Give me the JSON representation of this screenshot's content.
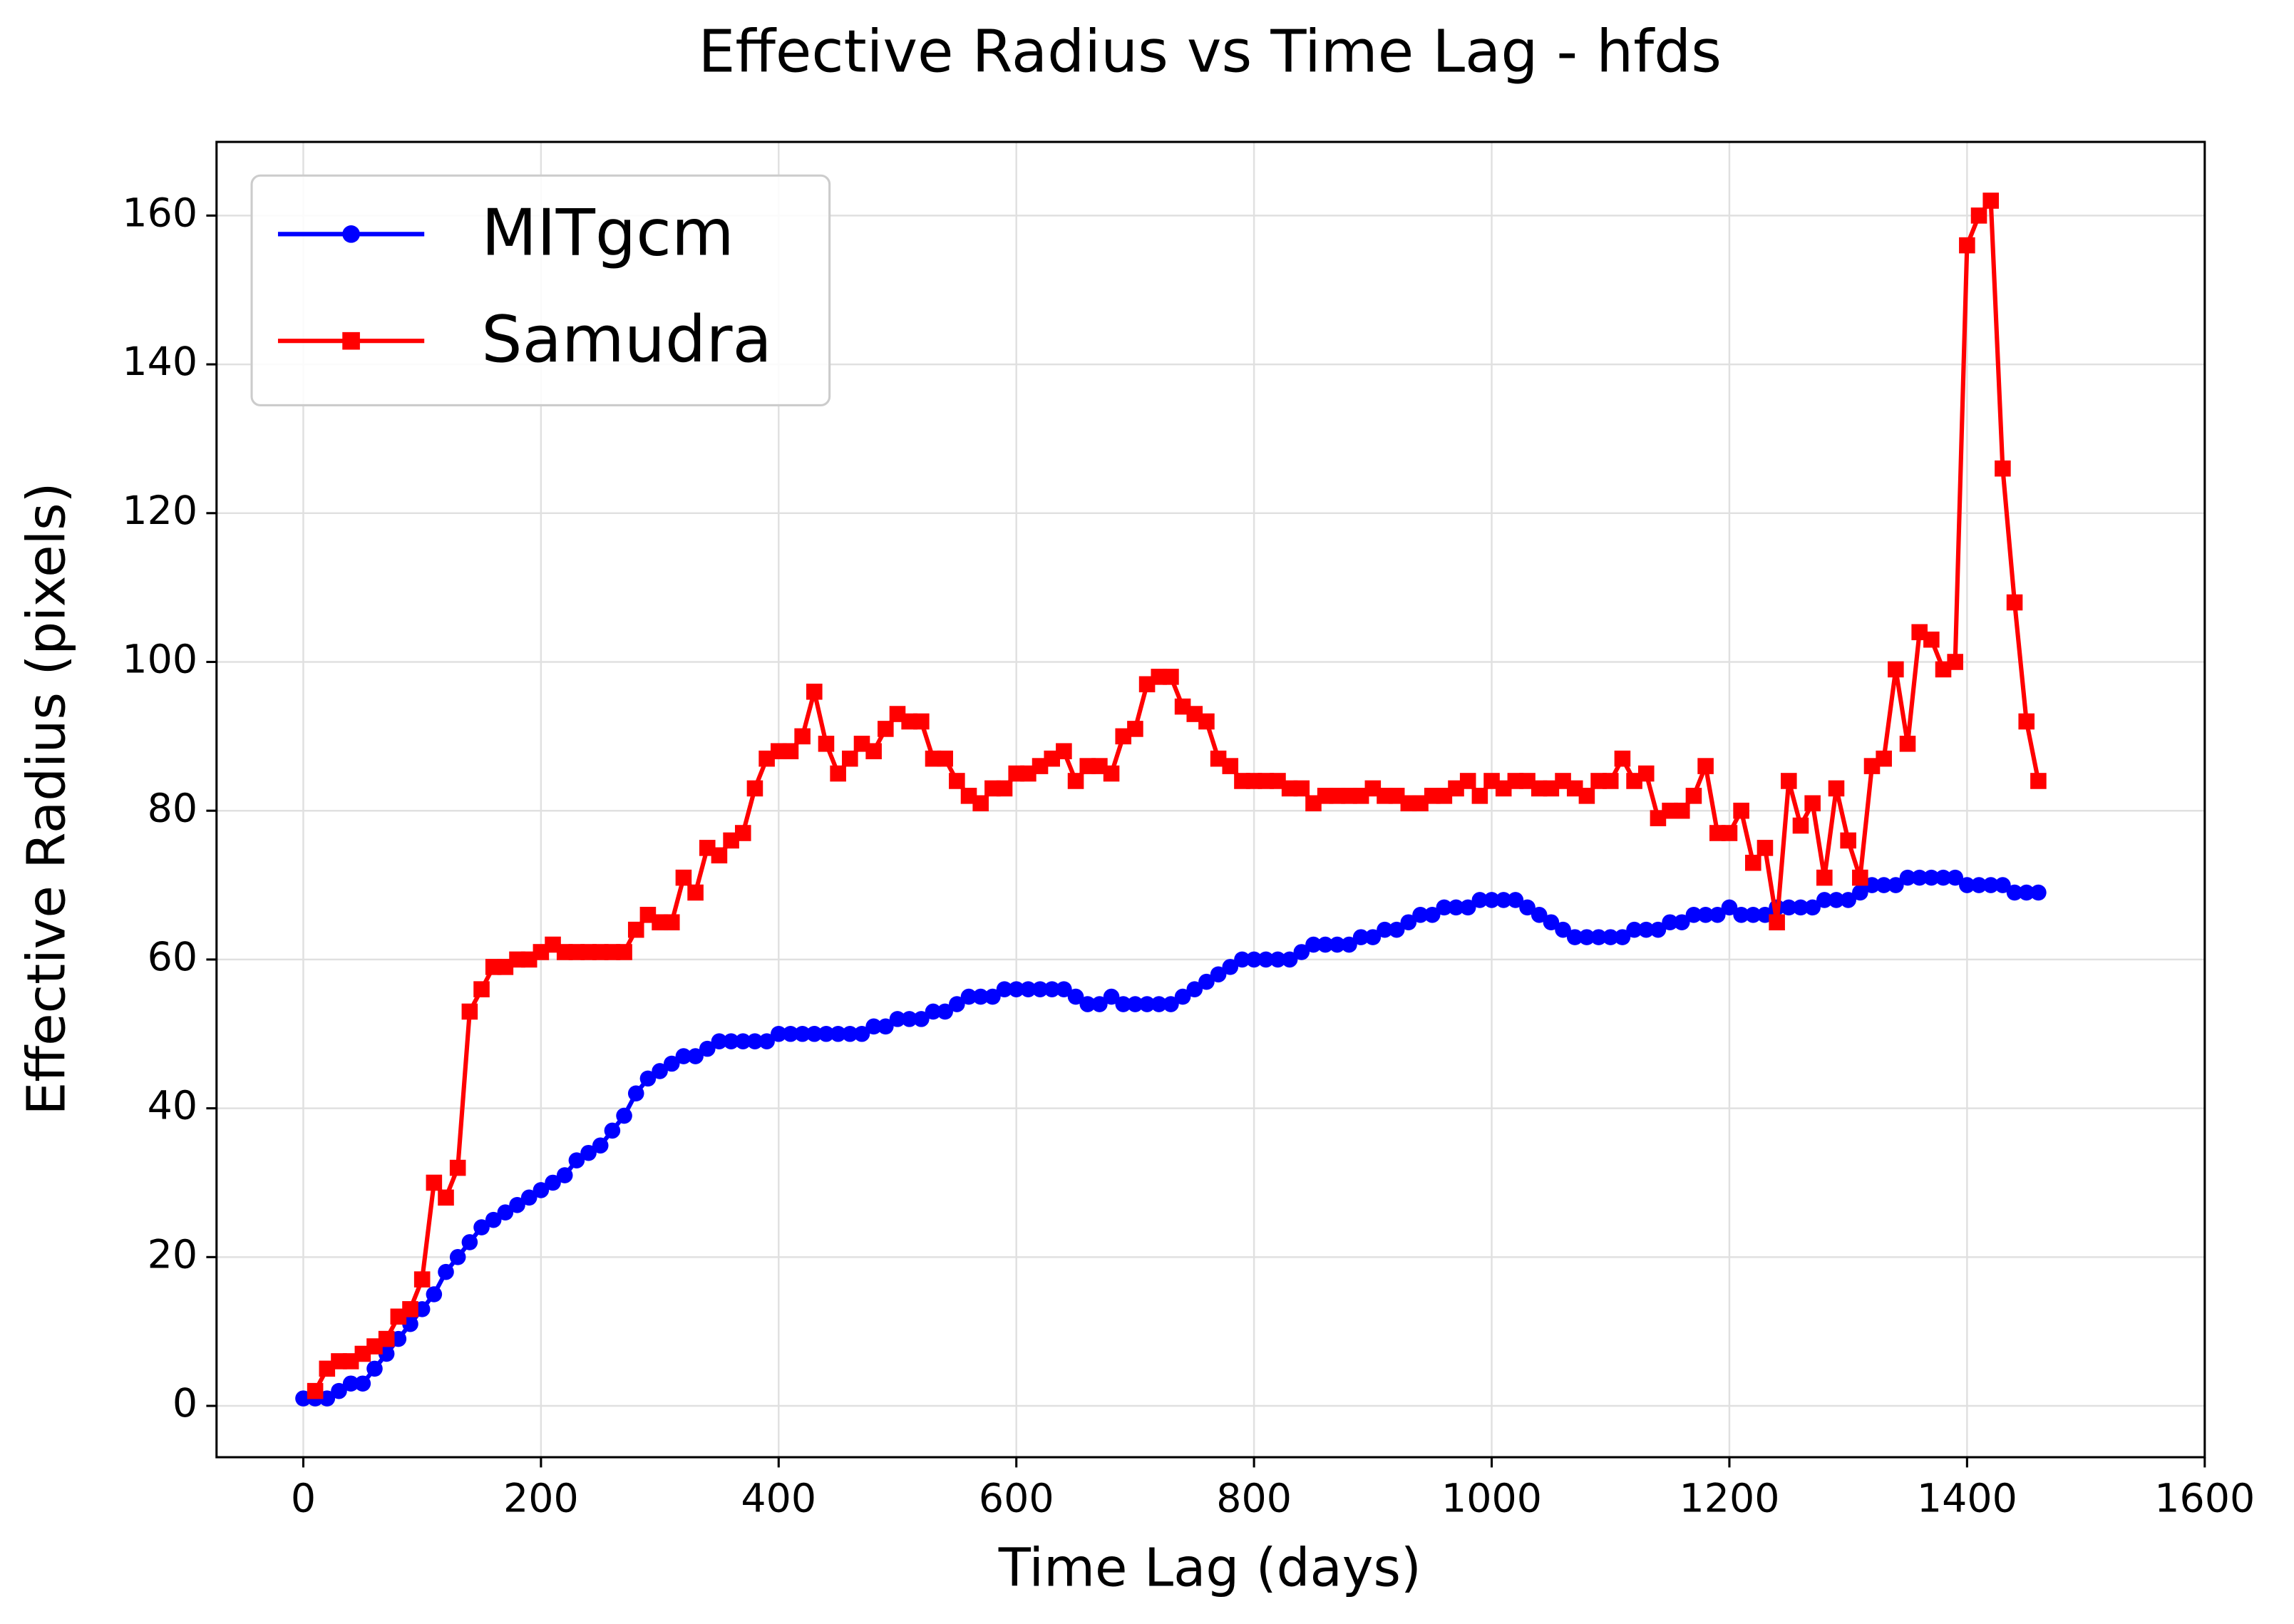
{
  "chart_data": {
    "type": "line",
    "title": "Effective Radius vs Time Lag - hfds",
    "x_label": "Time Lag (days)",
    "y_label": "Effective Radius (pixels)",
    "xlim": [
      -73,
      1600
    ],
    "ylim": [
      -6.9,
      169.9
    ],
    "xticks": [
      0,
      200,
      400,
      600,
      800,
      1000,
      1200,
      1400,
      1600
    ],
    "yticks": [
      0,
      20,
      40,
      60,
      80,
      100,
      120,
      140,
      160
    ],
    "grid": true,
    "legend": "upper left",
    "series": [
      {
        "name": "MITgcm",
        "color": "#0000ff",
        "marker": "circle",
        "x": [
          0,
          10,
          20,
          30,
          40,
          50,
          60,
          70,
          80,
          90,
          100,
          110,
          120,
          130,
          140,
          150,
          160,
          170,
          180,
          190,
          200,
          210,
          220,
          230,
          240,
          250,
          260,
          270,
          280,
          290,
          300,
          310,
          320,
          330,
          340,
          350,
          360,
          370,
          380,
          390,
          400,
          410,
          420,
          430,
          440,
          450,
          460,
          470,
          480,
          490,
          500,
          510,
          520,
          530,
          540,
          550,
          560,
          570,
          580,
          590,
          600,
          610,
          620,
          630,
          640,
          650,
          660,
          670,
          680,
          690,
          700,
          710,
          720,
          730,
          740,
          750,
          760,
          770,
          780,
          790,
          800,
          810,
          820,
          830,
          840,
          850,
          860,
          870,
          880,
          890,
          900,
          910,
          920,
          930,
          940,
          950,
          960,
          970,
          980,
          990,
          1000,
          1010,
          1020,
          1030,
          1040,
          1050,
          1060,
          1070,
          1080,
          1090,
          1100,
          1110,
          1120,
          1130,
          1140,
          1150,
          1160,
          1170,
          1180,
          1190,
          1200,
          1210,
          1220,
          1230,
          1240,
          1250,
          1260,
          1270,
          1280,
          1290,
          1300,
          1310,
          1320,
          1330,
          1340,
          1350,
          1360,
          1370,
          1380,
          1390,
          1400,
          1410,
          1420,
          1430,
          1440,
          1450,
          1460
        ],
        "values": [
          1,
          1,
          1,
          2,
          3,
          3,
          5,
          7,
          9,
          11,
          13,
          15,
          18,
          20,
          22,
          24,
          25,
          26,
          27,
          28,
          29,
          30,
          31,
          33,
          34,
          35,
          37,
          39,
          42,
          44,
          45,
          46,
          47,
          47,
          48,
          49,
          49,
          49,
          49,
          49,
          50,
          50,
          50,
          50,
          50,
          50,
          50,
          50,
          51,
          51,
          52,
          52,
          52,
          53,
          53,
          54,
          55,
          55,
          55,
          56,
          56,
          56,
          56,
          56,
          56,
          55,
          54,
          54,
          55,
          54,
          54,
          54,
          54,
          54,
          55,
          56,
          57,
          58,
          59,
          60,
          60,
          60,
          60,
          60,
          61,
          62,
          62,
          62,
          62,
          63,
          63,
          64,
          64,
          65,
          66,
          66,
          67,
          67,
          67,
          68,
          68,
          68,
          68,
          67,
          66,
          65,
          64,
          63,
          63,
          63,
          63,
          63,
          64,
          64,
          64,
          65,
          65,
          66,
          66,
          66,
          67,
          66,
          66,
          66,
          67,
          67,
          67,
          67,
          68,
          68,
          68,
          69,
          70,
          70,
          70,
          71,
          71,
          71,
          71,
          71,
          70,
          70,
          70,
          70,
          69,
          69,
          69
        ]
      },
      {
        "name": "Samudra",
        "color": "#ff0000",
        "marker": "square",
        "x": [
          10,
          20,
          30,
          40,
          50,
          60,
          70,
          80,
          90,
          100,
          110,
          120,
          130,
          140,
          150,
          160,
          170,
          180,
          190,
          200,
          210,
          220,
          230,
          240,
          250,
          260,
          270,
          280,
          290,
          300,
          310,
          320,
          330,
          340,
          350,
          360,
          370,
          380,
          390,
          400,
          410,
          420,
          430,
          440,
          450,
          460,
          470,
          480,
          490,
          500,
          510,
          520,
          530,
          540,
          550,
          560,
          570,
          580,
          590,
          600,
          610,
          620,
          630,
          640,
          650,
          660,
          670,
          680,
          690,
          700,
          710,
          720,
          730,
          740,
          750,
          760,
          770,
          780,
          790,
          800,
          810,
          820,
          830,
          840,
          850,
          860,
          870,
          880,
          890,
          900,
          910,
          920,
          930,
          940,
          950,
          960,
          970,
          980,
          990,
          1000,
          1010,
          1020,
          1030,
          1040,
          1050,
          1060,
          1070,
          1080,
          1090,
          1100,
          1110,
          1120,
          1130,
          1140,
          1150,
          1160,
          1170,
          1180,
          1190,
          1200,
          1210,
          1220,
          1230,
          1240,
          1250,
          1260,
          1270,
          1280,
          1290,
          1300,
          1310,
          1320,
          1330,
          1340,
          1350,
          1360,
          1370,
          1380,
          1390,
          1400,
          1410,
          1420,
          1430,
          1440,
          1450,
          1460
        ],
        "values": [
          2,
          5,
          6,
          6,
          7,
          8,
          9,
          12,
          13,
          17,
          30,
          28,
          32,
          53,
          56,
          59,
          59,
          60,
          60,
          61,
          62,
          61,
          61,
          61,
          61,
          61,
          61,
          64,
          66,
          65,
          65,
          71,
          69,
          75,
          74,
          76,
          77,
          83,
          87,
          88,
          88,
          90,
          96,
          89,
          85,
          87,
          89,
          88,
          91,
          93,
          92,
          92,
          87,
          87,
          84,
          82,
          81,
          83,
          83,
          85,
          85,
          86,
          87,
          88,
          84,
          86,
          86,
          85,
          90,
          91,
          97,
          98,
          98,
          94,
          93,
          92,
          87,
          86,
          84,
          84,
          84,
          84,
          83,
          83,
          81,
          82,
          82,
          82,
          82,
          83,
          82,
          82,
          81,
          81,
          82,
          82,
          83,
          84,
          82,
          84,
          83,
          84,
          84,
          83,
          83,
          84,
          83,
          82,
          84,
          84,
          87,
          84,
          85,
          79,
          80,
          80,
          82,
          86,
          77,
          77,
          80,
          73,
          75,
          65,
          84,
          78,
          81,
          71,
          83,
          76,
          71,
          86,
          87,
          99,
          89,
          104,
          103,
          99,
          100,
          156,
          160,
          162,
          126,
          108,
          92,
          84
        ]
      }
    ]
  }
}
